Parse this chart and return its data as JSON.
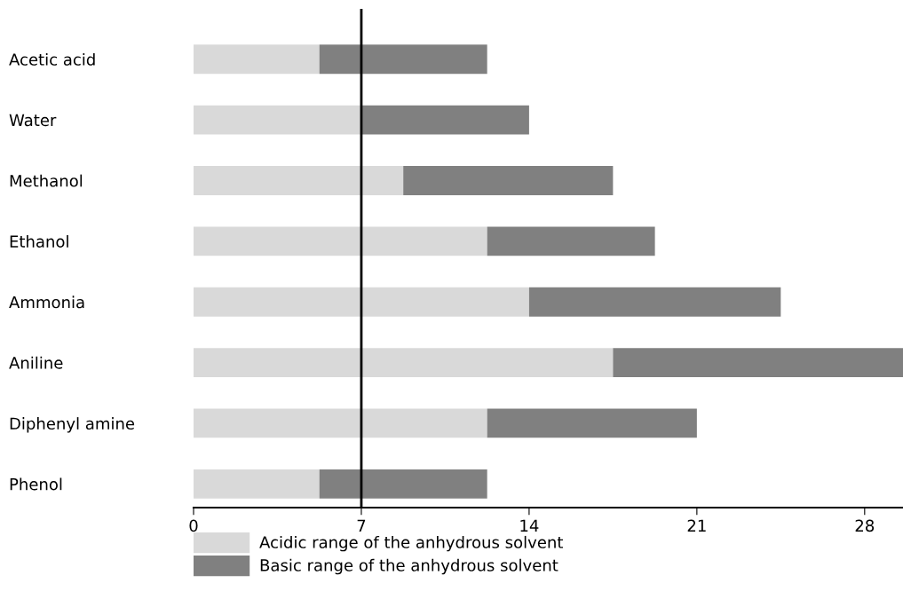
{
  "chart_data": {
    "type": "bar",
    "orientation": "horizontal",
    "stacked": true,
    "categories": [
      "Acetic acid",
      "Water",
      "Methanol",
      "Ethanol",
      "Ammonia",
      "Aniline",
      "Diphenyl amine",
      "Phenol"
    ],
    "series": [
      {
        "name": "Acidic range of the anhydrous solvent",
        "color": "#d9d9d9",
        "values": [
          5.25,
          7,
          8.75,
          12.25,
          14,
          17.5,
          12.25,
          5.25
        ]
      },
      {
        "name": "Basic range of the anhydrous solvent",
        "color": "#808080",
        "values": [
          7,
          7,
          8.75,
          7,
          10.5,
          12.1,
          8.75,
          7
        ]
      }
    ],
    "xlim": [
      0,
      29.6
    ],
    "xticks": [
      0,
      7,
      14,
      21,
      28
    ],
    "ref_lines": [
      {
        "axis": "x",
        "value": 7,
        "color": "#000000"
      }
    ],
    "grid": false,
    "legend": "bottom"
  }
}
